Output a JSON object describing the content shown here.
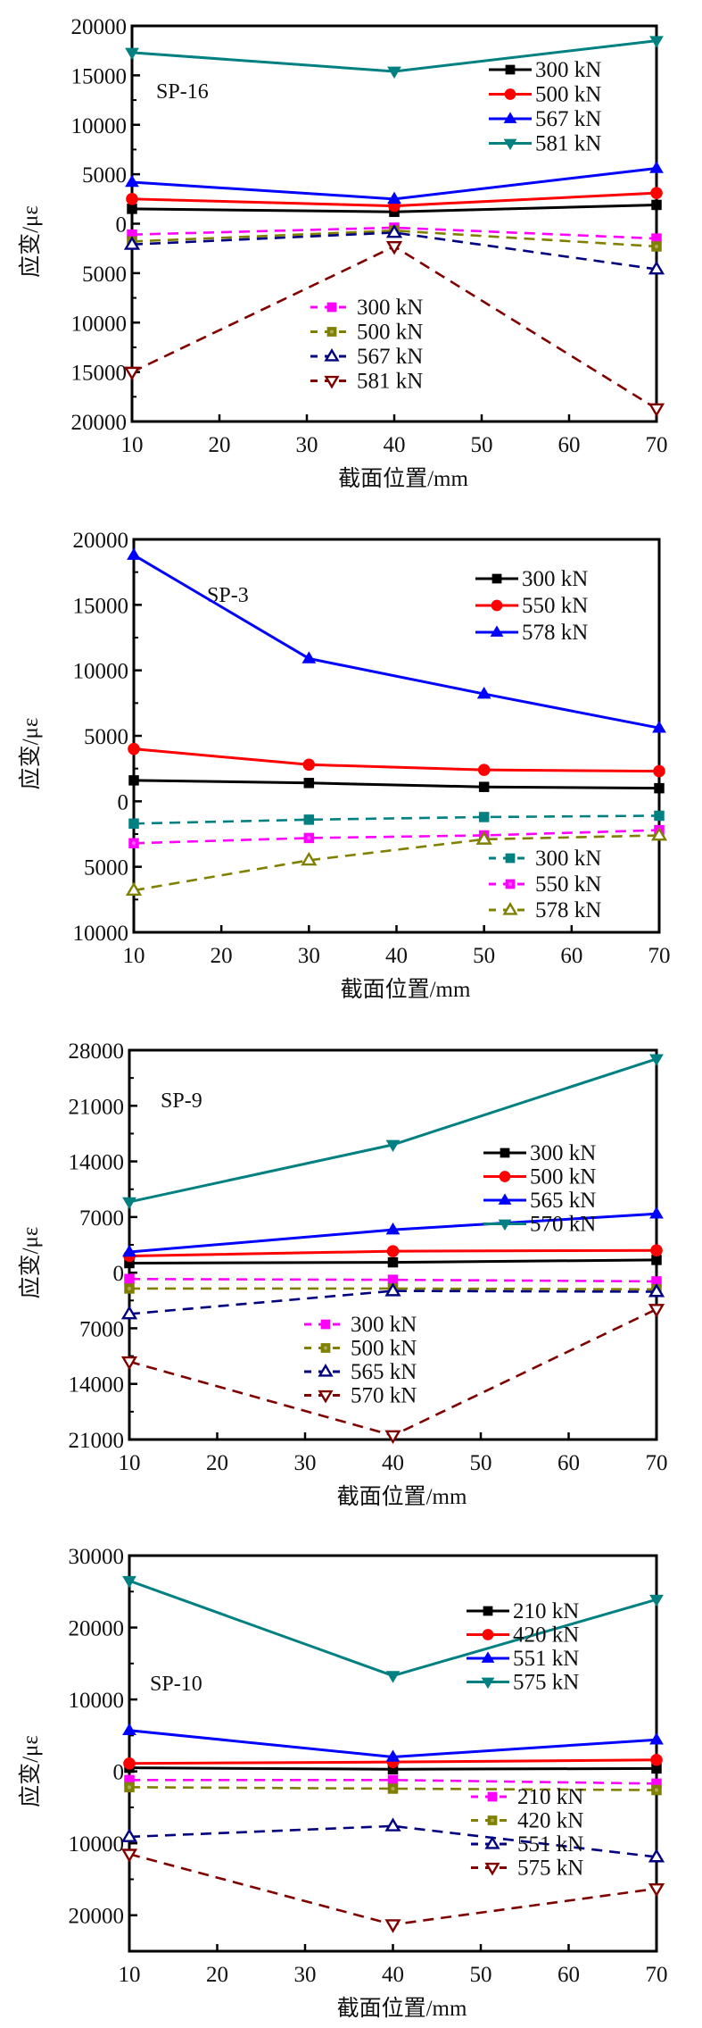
{
  "chart_data": [
    {
      "type": "line",
      "panel_label": "SP-16",
      "xlabel": "截面位置/mm",
      "ylabel": "应变/με",
      "xlim": [
        10,
        70
      ],
      "ylim": [
        -20000,
        20000
      ],
      "x_ticks": [
        10,
        20,
        30,
        40,
        50,
        60,
        70
      ],
      "y_ticks": [
        20000,
        15000,
        10000,
        5000,
        0,
        -5000,
        -10000,
        -15000,
        -20000
      ],
      "y_tick_labels": [
        "20000",
        "15000",
        "10000",
        "5000",
        "0",
        "5000",
        "10000",
        "15000",
        "20000"
      ],
      "grid": false,
      "legends": [
        {
          "placement": "top-right",
          "entries": [
            "300 kN",
            "500 kN",
            "567 kN",
            "581 kN"
          ]
        },
        {
          "placement": "bottom-center",
          "entries": [
            "300 kN",
            "500 kN",
            "567 kN",
            "581 kN"
          ]
        }
      ],
      "x": [
        10,
        40,
        70
      ],
      "series": [
        {
          "name": "300 kN",
          "group": "solid",
          "color": "#000000",
          "marker": "square",
          "values": [
            1500,
            1200,
            1900
          ]
        },
        {
          "name": "500 kN",
          "group": "solid",
          "color": "#ff0000",
          "marker": "circle",
          "values": [
            2500,
            1800,
            3100
          ]
        },
        {
          "name": "567 kN",
          "group": "solid",
          "color": "#0000ff",
          "marker": "triangle-up",
          "values": [
            4200,
            2500,
            5600
          ]
        },
        {
          "name": "581 kN",
          "group": "solid",
          "color": "#008080",
          "marker": "triangle-down",
          "values": [
            17300,
            15400,
            18500
          ]
        },
        {
          "name": "300 kN",
          "group": "dashed",
          "color": "#ff00ff",
          "marker": "square",
          "values": [
            -1100,
            -400,
            -1500
          ]
        },
        {
          "name": "500 kN",
          "group": "dashed",
          "color": "#808000",
          "marker": "square-dotted",
          "values": [
            -1800,
            -700,
            -2300
          ]
        },
        {
          "name": "567 kN",
          "group": "dashed",
          "color": "#000080",
          "marker": "triangle-up-open",
          "values": [
            -2100,
            -900,
            -4600
          ]
        },
        {
          "name": "581 kN",
          "group": "dashed",
          "color": "#800000",
          "marker": "triangle-down-open",
          "values": [
            -15000,
            -2300,
            -18700
          ]
        }
      ]
    },
    {
      "type": "line",
      "panel_label": "SP-3",
      "xlabel": "截面位置/mm",
      "ylabel": "应变/με",
      "xlim": [
        10,
        70
      ],
      "ylim": [
        -10000,
        20000
      ],
      "x_ticks": [
        10,
        20,
        30,
        40,
        50,
        60,
        70
      ],
      "y_ticks": [
        20000,
        15000,
        10000,
        5000,
        0,
        -5000,
        -10000
      ],
      "y_tick_labels": [
        "20000",
        "15000",
        "10000",
        "5000",
        "0",
        "5000",
        "10000"
      ],
      "grid": false,
      "legends": [
        {
          "placement": "top-right",
          "entries": [
            "300 kN",
            "550 kN",
            "578 kN"
          ]
        },
        {
          "placement": "bottom-right",
          "entries": [
            "300 kN",
            "550 kN",
            "578 kN"
          ]
        }
      ],
      "x": [
        10,
        30,
        50,
        70
      ],
      "series": [
        {
          "name": "300 kN",
          "group": "solid",
          "color": "#000000",
          "marker": "square",
          "values": [
            1600,
            1400,
            1100,
            1000
          ]
        },
        {
          "name": "550 kN",
          "group": "solid",
          "color": "#ff0000",
          "marker": "circle",
          "values": [
            4000,
            2800,
            2400,
            2300
          ]
        },
        {
          "name": "578 kN",
          "group": "solid",
          "color": "#0000ff",
          "marker": "triangle-up",
          "values": [
            18800,
            10900,
            8200,
            5600
          ]
        },
        {
          "name": "300 kN",
          "group": "dashed",
          "color": "#008080",
          "marker": "square",
          "values": [
            -1700,
            -1400,
            -1200,
            -1100
          ]
        },
        {
          "name": "550 kN",
          "group": "dashed",
          "color": "#ff00ff",
          "marker": "square-dotted",
          "values": [
            -3200,
            -2800,
            -2600,
            -2200
          ]
        },
        {
          "name": "578 kN",
          "group": "dashed",
          "color": "#808000",
          "marker": "triangle-up-open",
          "values": [
            -6800,
            -4500,
            -2900,
            -2600
          ]
        }
      ]
    },
    {
      "type": "line",
      "panel_label": "SP-9",
      "xlabel": "截面位置/mm",
      "ylabel": "应变/με",
      "xlim": [
        10,
        70
      ],
      "ylim": [
        -21000,
        28000
      ],
      "x_ticks": [
        10,
        20,
        30,
        40,
        50,
        60,
        70
      ],
      "y_ticks": [
        28000,
        21000,
        14000,
        7000,
        0,
        -7000,
        -14000,
        -21000
      ],
      "y_tick_labels": [
        "28000",
        "21000",
        "14000",
        "7000",
        "0",
        "7000",
        "14000",
        "21000"
      ],
      "grid": false,
      "legends": [
        {
          "placement": "top-right",
          "entries": [
            "300 kN",
            "500 kN",
            "565 kN",
            "570 kN"
          ]
        },
        {
          "placement": "center",
          "entries": [
            "300 kN",
            "500 kN",
            "565 kN",
            "570 kN"
          ]
        }
      ],
      "x": [
        10,
        40,
        70
      ],
      "series": [
        {
          "name": "300 kN",
          "group": "solid",
          "color": "#000000",
          "marker": "square",
          "values": [
            1200,
            1300,
            1600
          ]
        },
        {
          "name": "500 kN",
          "group": "solid",
          "color": "#ff0000",
          "marker": "circle",
          "values": [
            2100,
            2700,
            2800
          ]
        },
        {
          "name": "565 kN",
          "group": "solid",
          "color": "#0000ff",
          "marker": "triangle-up",
          "values": [
            2600,
            5400,
            7400
          ]
        },
        {
          "name": "570 kN",
          "group": "solid",
          "color": "#008080",
          "marker": "triangle-down",
          "values": [
            8900,
            16100,
            26900
          ]
        },
        {
          "name": "300 kN",
          "group": "dashed",
          "color": "#ff00ff",
          "marker": "square",
          "values": [
            -800,
            -900,
            -1100
          ]
        },
        {
          "name": "500 kN",
          "group": "dashed",
          "color": "#808000",
          "marker": "square-dotted",
          "values": [
            -2000,
            -2000,
            -2100
          ]
        },
        {
          "name": "565 kN",
          "group": "dashed",
          "color": "#000080",
          "marker": "triangle-up-open",
          "values": [
            -5200,
            -2300,
            -2400
          ]
        },
        {
          "name": "570 kN",
          "group": "dashed",
          "color": "#800000",
          "marker": "triangle-down-open",
          "values": [
            -11200,
            -20500,
            -4600
          ]
        }
      ]
    },
    {
      "type": "line",
      "panel_label": "SP-10",
      "xlabel": "截面位置/mm",
      "ylabel": "应变/με",
      "xlim": [
        10,
        70
      ],
      "ylim": [
        -25000,
        30000
      ],
      "x_ticks": [
        10,
        20,
        30,
        40,
        50,
        60,
        70
      ],
      "y_ticks": [
        30000,
        20000,
        10000,
        0,
        -10000,
        -20000
      ],
      "y_tick_labels": [
        "30000",
        "20000",
        "10000",
        "0",
        "10000",
        "20000"
      ],
      "grid": false,
      "legends": [
        {
          "placement": "top-right",
          "entries": [
            "210 kN",
            "420 kN",
            "551 kN",
            "575 kN"
          ]
        },
        {
          "placement": "bottom-right",
          "entries": [
            "210 kN",
            "420 kN",
            "551 kN",
            "575 kN"
          ]
        }
      ],
      "x": [
        10,
        40,
        70
      ],
      "series": [
        {
          "name": "210 kN",
          "group": "solid",
          "color": "#000000",
          "marker": "square",
          "values": [
            500,
            300,
            400
          ]
        },
        {
          "name": "420 kN",
          "group": "solid",
          "color": "#ff0000",
          "marker": "circle",
          "values": [
            1100,
            1300,
            1600
          ]
        },
        {
          "name": "551 kN",
          "group": "solid",
          "color": "#0000ff",
          "marker": "triangle-up",
          "values": [
            5700,
            2000,
            4400
          ]
        },
        {
          "name": "575 kN",
          "group": "solid",
          "color": "#008080",
          "marker": "triangle-down",
          "values": [
            26500,
            13300,
            23900
          ]
        },
        {
          "name": "210 kN",
          "group": "dashed",
          "color": "#ff00ff",
          "marker": "square",
          "values": [
            -1200,
            -1200,
            -1700
          ]
        },
        {
          "name": "420 kN",
          "group": "dashed",
          "color": "#808000",
          "marker": "square-dotted",
          "values": [
            -2200,
            -2400,
            -2600
          ]
        },
        {
          "name": "551 kN",
          "group": "dashed",
          "color": "#000080",
          "marker": "triangle-up-open",
          "values": [
            -9100,
            -7600,
            -11900
          ]
        },
        {
          "name": "575 kN",
          "group": "dashed",
          "color": "#800000",
          "marker": "triangle-down-open",
          "values": [
            -11500,
            -21300,
            -16300
          ]
        }
      ]
    }
  ]
}
